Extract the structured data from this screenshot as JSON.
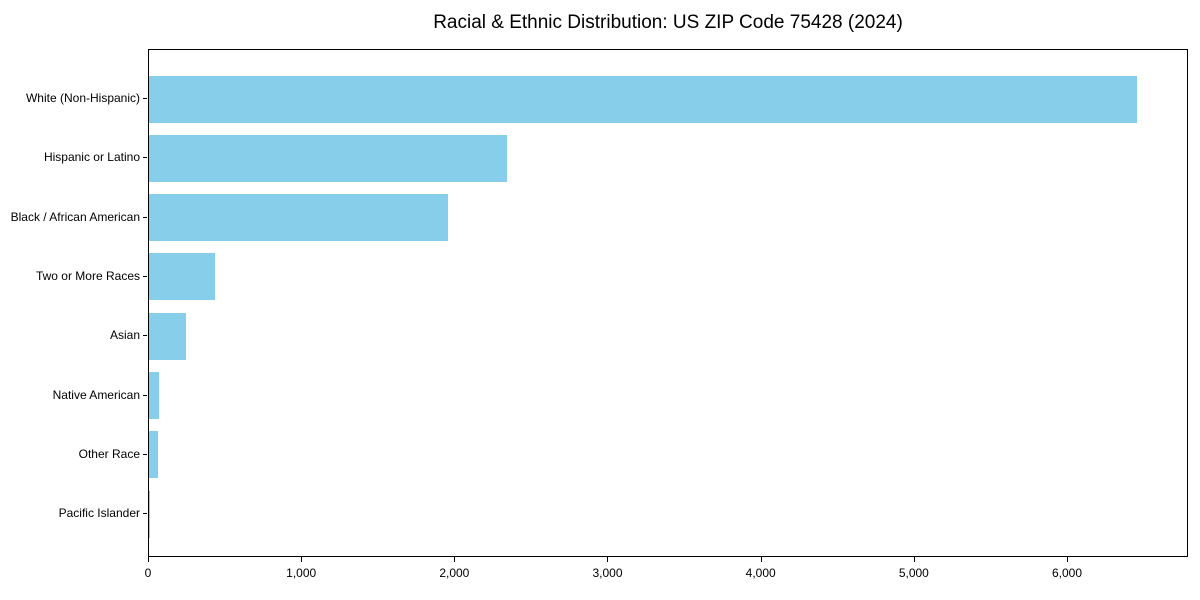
{
  "chart_data": {
    "type": "bar",
    "orientation": "horizontal",
    "title": "Racial & Ethnic Distribution: US ZIP Code 75428 (2024)",
    "categories": [
      "White (Non-Hispanic)",
      "Hispanic or Latino",
      "Black / African American",
      "Two or More Races",
      "Asian",
      "Native American",
      "Other Race",
      "Pacific Islander"
    ],
    "values": [
      6450,
      2340,
      1950,
      430,
      240,
      65,
      58,
      2
    ],
    "xlabel": "",
    "ylabel": "",
    "xlim": [
      0,
      6790
    ],
    "x_ticks": [
      0,
      1000,
      2000,
      3000,
      4000,
      5000,
      6000
    ],
    "x_tick_labels": [
      "0",
      "1,000",
      "2,000",
      "3,000",
      "4,000",
      "5,000",
      "6,000"
    ],
    "bar_color": "#87CEEB",
    "axis_color": "#000000",
    "background_color": "#ffffff",
    "grid": false,
    "legend_position": "none"
  }
}
